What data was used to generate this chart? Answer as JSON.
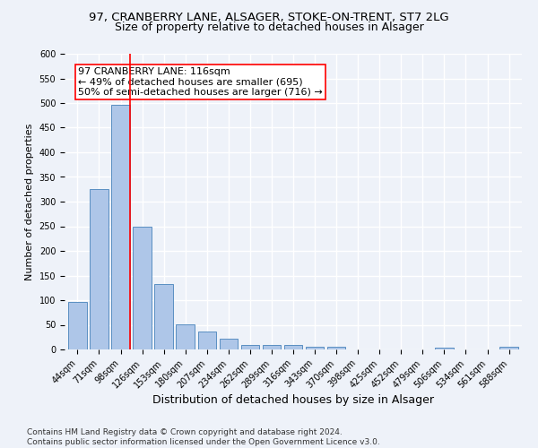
{
  "title_line1": "97, CRANBERRY LANE, ALSAGER, STOKE-ON-TRENT, ST7 2LG",
  "title_line2": "Size of property relative to detached houses in Alsager",
  "xlabel": "Distribution of detached houses by size in Alsager",
  "ylabel": "Number of detached properties",
  "categories": [
    "44sqm",
    "71sqm",
    "98sqm",
    "126sqm",
    "153sqm",
    "180sqm",
    "207sqm",
    "234sqm",
    "262sqm",
    "289sqm",
    "316sqm",
    "343sqm",
    "370sqm",
    "398sqm",
    "425sqm",
    "452sqm",
    "479sqm",
    "506sqm",
    "534sqm",
    "561sqm",
    "588sqm"
  ],
  "values": [
    97,
    325,
    496,
    250,
    133,
    51,
    36,
    22,
    9,
    10,
    10,
    6,
    5,
    0,
    0,
    0,
    0,
    3,
    0,
    0,
    6
  ],
  "bar_color": "#aec6e8",
  "bar_edge_color": "#5a8fc2",
  "bar_width": 0.85,
  "red_line_index": 2,
  "annotation_text": "97 CRANBERRY LANE: 116sqm\n← 49% of detached houses are smaller (695)\n50% of semi-detached houses are larger (716) →",
  "annotation_box_color": "white",
  "annotation_box_edge_color": "red",
  "ylim": [
    0,
    600
  ],
  "yticks": [
    0,
    50,
    100,
    150,
    200,
    250,
    300,
    350,
    400,
    450,
    500,
    550,
    600
  ],
  "background_color": "#eef2f9",
  "grid_color": "white",
  "footnote": "Contains HM Land Registry data © Crown copyright and database right 2024.\nContains public sector information licensed under the Open Government Licence v3.0.",
  "title_fontsize": 9.5,
  "subtitle_fontsize": 9,
  "xlabel_fontsize": 9,
  "ylabel_fontsize": 8,
  "tick_fontsize": 7,
  "annotation_fontsize": 8,
  "footnote_fontsize": 6.5
}
